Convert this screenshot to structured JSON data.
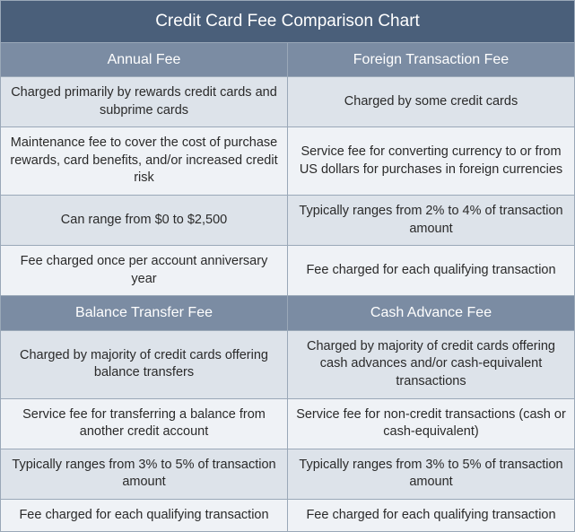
{
  "title": "Credit Card Fee Comparison Chart",
  "colors": {
    "title_bg": "#4a5f7a",
    "header_bg": "#7b8ca3",
    "row_odd_bg": "#dde3ea",
    "row_even_bg": "#eff2f6",
    "border": "#9aa8b8",
    "header_text": "#ffffff",
    "body_text": "#2a2a2a"
  },
  "sections": [
    {
      "headers": [
        "Annual Fee",
        "Foreign Transaction Fee"
      ],
      "rows": [
        [
          "Charged primarily by rewards credit cards and subprime cards",
          "Charged by some credit cards"
        ],
        [
          "Maintenance fee to cover the cost of purchase rewards, card benefits, and/or increased credit risk",
          "Service fee for converting currency to or from US dollars for purchases in foreign currencies"
        ],
        [
          "Can range from $0 to $2,500",
          "Typically ranges from 2% to 4% of transaction amount"
        ],
        [
          "Fee charged once per account anniversary year",
          "Fee charged for each qualifying transaction"
        ]
      ]
    },
    {
      "headers": [
        "Balance Transfer Fee",
        "Cash Advance Fee"
      ],
      "rows": [
        [
          "Charged by majority of credit cards offering balance transfers",
          "Charged by majority of credit cards offering cash advances and/or cash-equivalent transactions"
        ],
        [
          "Service fee for transferring a balance from another credit account",
          "Service fee for non-credit transactions (cash or cash-equivalent)"
        ],
        [
          "Typically ranges from 3% to 5% of transaction amount",
          "Typically ranges from 3% to 5% of transaction amount"
        ],
        [
          "Fee charged for each qualifying transaction",
          "Fee charged for each qualifying transaction"
        ]
      ]
    }
  ]
}
